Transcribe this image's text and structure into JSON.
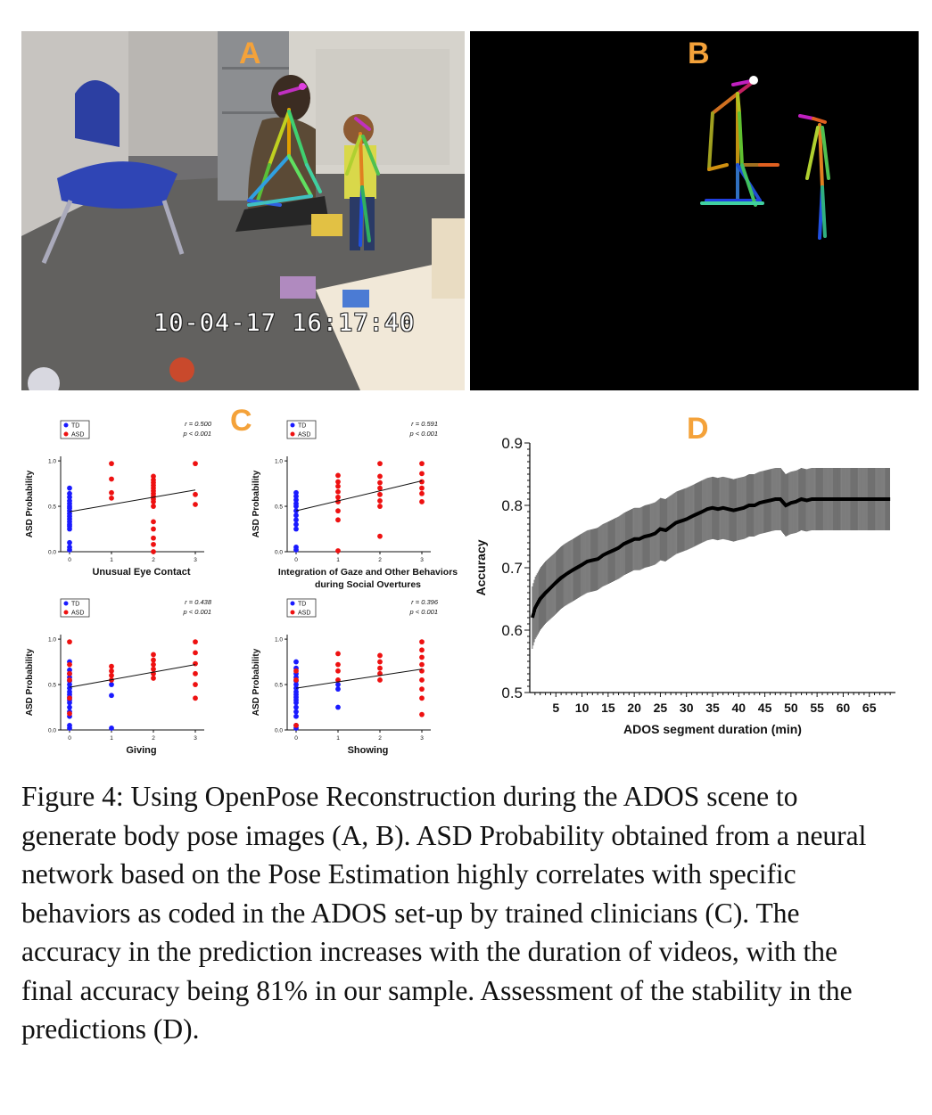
{
  "panels": {
    "a_label": "A",
    "b_label": "B",
    "c_label": "C",
    "d_label": "D",
    "video_timestamp": "10-04-17 16:17:40"
  },
  "colors": {
    "panel_letter": "#f4a23a",
    "td": "#1a1aff",
    "asd": "#ee1111"
  },
  "caption": {
    "figure_label": "Figure 4:",
    "text": "Using OpenPose Reconstruction during the ADOS scene to generate body pose images (A, B). ASD Probability obtained from a neural network based on the Pose Estimation highly correlates with specific behaviors as coded in the ADOS set-up by trained clinicians (C). The accuracy in the prediction increases with the duration of videos, with the final accuracy being 81% in our sample. Assessment of the stability in the predictions (D)."
  },
  "chart_data": [
    {
      "type": "scatter",
      "panel": "C",
      "xlabel": "Unusual Eye Contact",
      "ylabel": "ASD Probability",
      "legend": [
        "TD",
        "ASD"
      ],
      "r": "r = 0.500",
      "p": "p < 0.001",
      "xticks": [
        "0",
        "1",
        "2",
        "3"
      ],
      "yticks": [
        "0.0",
        "0.5",
        "1.0"
      ],
      "ylim": [
        0,
        1.05
      ],
      "trend": [
        0.44,
        0.68
      ],
      "td": {
        "x": 0,
        "y": [
          0.02,
          0.05,
          0.1,
          0.25,
          0.28,
          0.3,
          0.33,
          0.36,
          0.39,
          0.42,
          0.45,
          0.48,
          0.5,
          0.53,
          0.56,
          0.6,
          0.64,
          0.7
        ]
      },
      "asd": [
        {
          "x": 1,
          "y": [
            0.59,
            0.65,
            0.8,
            0.97
          ]
        },
        {
          "x": 2,
          "y": [
            0.0,
            0.08,
            0.15,
            0.25,
            0.33,
            0.5,
            0.55,
            0.58,
            0.61,
            0.64,
            0.67,
            0.7,
            0.73,
            0.76,
            0.79,
            0.83
          ]
        },
        {
          "x": 3,
          "y": [
            0.52,
            0.63,
            0.97
          ]
        }
      ]
    },
    {
      "type": "scatter",
      "panel": "C",
      "xlabel": "Integration of Gaze and Other Behaviors during Social Overtures",
      "ylabel": "ASD Probability",
      "legend": [
        "TD",
        "ASD"
      ],
      "r": "r = 0.591",
      "p": "p < 0.001",
      "xticks": [
        "0",
        "1",
        "2",
        "3"
      ],
      "yticks": [
        "0.0",
        "0.5",
        "1.0"
      ],
      "ylim": [
        0,
        1.05
      ],
      "trend": [
        0.45,
        0.78
      ],
      "td": {
        "x": 0,
        "y": [
          0.02,
          0.05,
          0.25,
          0.3,
          0.35,
          0.4,
          0.45,
          0.5,
          0.53,
          0.57,
          0.61,
          0.65
        ]
      },
      "asd": [
        {
          "x": 1,
          "y": [
            0.01,
            0.35,
            0.45,
            0.55,
            0.6,
            0.66,
            0.72,
            0.77,
            0.84
          ]
        },
        {
          "x": 2,
          "y": [
            0.17,
            0.5,
            0.56,
            0.63,
            0.7,
            0.76,
            0.83,
            0.97
          ]
        },
        {
          "x": 3,
          "y": [
            0.55,
            0.64,
            0.7,
            0.77,
            0.86,
            0.97
          ]
        }
      ]
    },
    {
      "type": "scatter",
      "panel": "C",
      "xlabel": "Giving",
      "ylabel": "ASD Probability",
      "legend": [
        "TD",
        "ASD"
      ],
      "r": "r = 0.438",
      "p": "p < 0.001",
      "xticks": [
        "0",
        "1",
        "2",
        "3"
      ],
      "yticks": [
        "0.0",
        "0.5",
        "1.0"
      ],
      "ylim": [
        0,
        1.05
      ],
      "trend": [
        0.47,
        0.72
      ],
      "td": {
        "x": 0,
        "y": [
          0.02,
          0.05,
          0.15,
          0.2,
          0.25,
          0.3,
          0.33,
          0.36,
          0.39,
          0.42,
          0.46,
          0.5,
          0.54,
          0.58,
          0.62,
          0.66,
          0.75
        ]
      },
      "extra_td": [
        {
          "x": 1,
          "y": [
            0.02,
            0.38,
            0.5
          ]
        }
      ],
      "asd": [
        {
          "x": 0,
          "y": [
            0.18,
            0.35,
            0.55,
            0.62,
            0.72,
            0.97
          ]
        },
        {
          "x": 1,
          "y": [
            0.55,
            0.6,
            0.65,
            0.7
          ]
        },
        {
          "x": 2,
          "y": [
            0.57,
            0.62,
            0.67,
            0.72,
            0.77,
            0.83
          ]
        },
        {
          "x": 3,
          "y": [
            0.35,
            0.5,
            0.62,
            0.73,
            0.85,
            0.97
          ]
        }
      ]
    },
    {
      "type": "scatter",
      "panel": "C",
      "xlabel": "Showing",
      "ylabel": "ASD Probability",
      "legend": [
        "TD",
        "ASD"
      ],
      "r": "r = 0.396",
      "p": "p < 0.001",
      "xticks": [
        "0",
        "1",
        "2",
        "3"
      ],
      "yticks": [
        "0.0",
        "0.5",
        "1.0"
      ],
      "ylim": [
        0,
        1.05
      ],
      "trend": [
        0.46,
        0.67
      ],
      "td": {
        "x": 0,
        "y": [
          0.02,
          0.05,
          0.15,
          0.2,
          0.25,
          0.3,
          0.33,
          0.36,
          0.39,
          0.42,
          0.46,
          0.5,
          0.54,
          0.58,
          0.62,
          0.68,
          0.75
        ]
      },
      "extra_td": [
        {
          "x": 1,
          "y": [
            0.25,
            0.45,
            0.5
          ]
        }
      ],
      "asd": [
        {
          "x": 0,
          "y": [
            0.05,
            0.55,
            0.65
          ]
        },
        {
          "x": 1,
          "y": [
            0.55,
            0.65,
            0.72,
            0.84
          ]
        },
        {
          "x": 2,
          "y": [
            0.55,
            0.62,
            0.68,
            0.75,
            0.82
          ]
        },
        {
          "x": 3,
          "y": [
            0.17,
            0.35,
            0.45,
            0.55,
            0.65,
            0.72,
            0.8,
            0.88,
            0.97
          ]
        }
      ]
    },
    {
      "type": "line",
      "panel": "D",
      "xlabel": "ADOS segment duration (min)",
      "ylabel": "Accuracy",
      "xlim": [
        0,
        70
      ],
      "ylim": [
        0.5,
        0.9
      ],
      "xticks": [
        5,
        10,
        15,
        20,
        25,
        30,
        35,
        40,
        45,
        50,
        55,
        60,
        65
      ],
      "yticks": [
        0.5,
        0.6,
        0.7,
        0.8,
        0.9
      ],
      "x": [
        0.5,
        1,
        2,
        3,
        4,
        5,
        6,
        7,
        8,
        9,
        10,
        11,
        12,
        13,
        14,
        15,
        16,
        17,
        18,
        19,
        20,
        21,
        22,
        23,
        24,
        25,
        26,
        27,
        28,
        29,
        30,
        31,
        32,
        33,
        34,
        35,
        36,
        37,
        38,
        39,
        40,
        41,
        42,
        43,
        44,
        45,
        46,
        47,
        48,
        49,
        50,
        51,
        52,
        53,
        54,
        55,
        56,
        57,
        58,
        59,
        60,
        61,
        62,
        63,
        64,
        65,
        66,
        67,
        68,
        69
      ],
      "y": [
        0.62,
        0.635,
        0.65,
        0.66,
        0.668,
        0.676,
        0.684,
        0.69,
        0.695,
        0.7,
        0.705,
        0.71,
        0.712,
        0.714,
        0.72,
        0.724,
        0.728,
        0.732,
        0.738,
        0.742,
        0.746,
        0.746,
        0.75,
        0.752,
        0.755,
        0.762,
        0.76,
        0.766,
        0.772,
        0.775,
        0.778,
        0.782,
        0.786,
        0.79,
        0.794,
        0.796,
        0.794,
        0.796,
        0.794,
        0.792,
        0.794,
        0.796,
        0.8,
        0.8,
        0.804,
        0.806,
        0.808,
        0.81,
        0.81,
        0.8,
        0.804,
        0.806,
        0.81,
        0.808,
        0.81,
        0.81,
        0.81,
        0.81,
        0.81,
        0.81,
        0.81,
        0.81,
        0.81,
        0.81,
        0.81,
        0.81,
        0.81,
        0.81,
        0.81,
        0.81
      ],
      "error": 0.05
    }
  ]
}
